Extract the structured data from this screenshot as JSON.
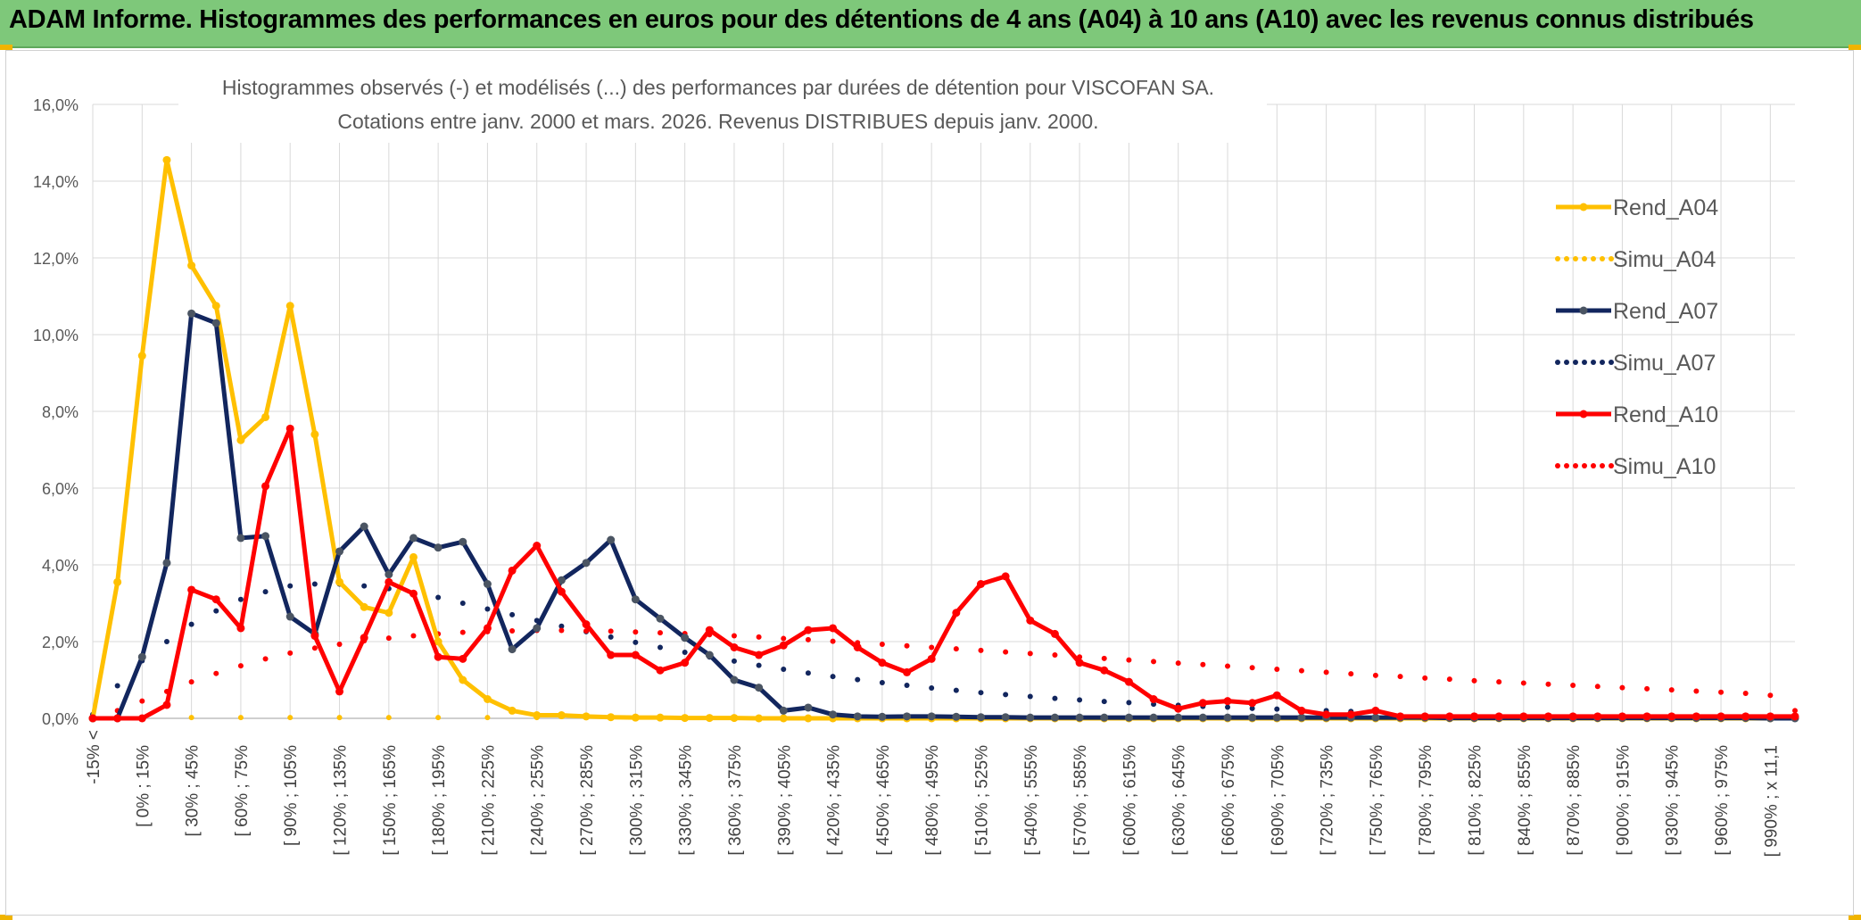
{
  "banner": {
    "title": "ADAM Informe. Histogrammes des performances en euros pour des détentions de 4 ans (A04) à 10 ans (A10) avec les revenus connus distribués"
  },
  "chart_data": {
    "type": "line",
    "title": "Histogrammes observés (-) et modélisés (...) des performances par durées de détention pour VISCOFAN SA.",
    "subtitle": "Cotations entre janv. 2000 et mars. 2026. Revenus DISTRIBUES depuis janv. 2000.",
    "xlabel": "",
    "ylabel": "",
    "ylim": [
      0,
      16
    ],
    "yticks": [
      "0,0%",
      "2,0%",
      "4,0%",
      "6,0%",
      "8,0%",
      "10,0%",
      "12,0%",
      "14,0%",
      "16,0%"
    ],
    "grid": true,
    "legend_position": "right",
    "x_tick_labels": [
      "-15% <",
      "[ 0% ; 15%",
      "[ 30% ; 45%",
      "[ 60% ; 75%",
      "[ 90% ; 105%",
      "[ 120% ; 135%",
      "[ 150% ; 165%",
      "[ 180% ; 195%",
      "[ 210% ; 225%",
      "[ 240% ; 255%",
      "[ 270% ; 285%",
      "[ 300% ; 315%",
      "[ 330% ; 345%",
      "[ 360% ; 375%",
      "[ 390% ; 405%",
      "[ 420% ; 435%",
      "[ 450% ; 465%",
      "[ 480% ; 495%",
      "[ 510% ; 525%",
      "[ 540% ; 555%",
      "[ 570% ; 585%",
      "[ 600% ; 615%",
      "[ 630% ; 645%",
      "[ 660% ; 675%",
      "[ 690% ; 705%",
      "[ 720% ; 735%",
      "[ 750% ; 765%",
      "[ 780% ; 795%",
      "[ 810% ; 825%",
      "[ 840% ; 855%",
      "[ 870% ; 885%",
      "[ 900% ; 915%",
      "[ 930% ; 945%",
      "[ 960% ; 975%",
      "[ 990% ; x 11,1"
    ],
    "series": [
      {
        "name": "Rend_A04",
        "style": "solid",
        "color": "#ffc000",
        "values": [
          0,
          3.55,
          9.45,
          14.55,
          11.8,
          10.75,
          7.25,
          7.85,
          10.75,
          7.4,
          3.55,
          2.9,
          2.75,
          4.2,
          2.0,
          1.0,
          0.5,
          0.2,
          0.08,
          0.08,
          0.05,
          0.03,
          0.02,
          0.02,
          0.01,
          0.01,
          0.01,
          0.0,
          0.0,
          0,
          0,
          0,
          0,
          0,
          0,
          0,
          0,
          0,
          0,
          0,
          0,
          0,
          0,
          0,
          0,
          0,
          0,
          0,
          0,
          0,
          0,
          0,
          0,
          0,
          0,
          0,
          0,
          0,
          0,
          0,
          0,
          0,
          0,
          0,
          0,
          0,
          0,
          0,
          0
        ]
      },
      {
        "name": "Simu_A04",
        "style": "dotted",
        "color": "#ffc000",
        "values": [
          0.02,
          0.02,
          0.02,
          0.02,
          0.02,
          0.02,
          0.02,
          0.02,
          0.02,
          0.02,
          0.02,
          0.02,
          0.02,
          0.02,
          0.02,
          0.02,
          0.02,
          0.02,
          0.02,
          0.02,
          0.02,
          0.02,
          0.02,
          0.02,
          0.02,
          0.02,
          0.02,
          0.02,
          0.02,
          0.02
        ]
      },
      {
        "name": "Rend_A07",
        "style": "solid",
        "color": "#12265e",
        "values": [
          0,
          0,
          1.6,
          4.05,
          10.55,
          10.3,
          4.7,
          4.75,
          2.65,
          2.2,
          4.35,
          5.0,
          3.75,
          4.7,
          4.45,
          4.6,
          3.5,
          1.8,
          2.35,
          3.6,
          4.05,
          4.65,
          3.1,
          2.6,
          2.1,
          1.65,
          1.0,
          0.8,
          0.2,
          0.28,
          0.1,
          0.05,
          0.04,
          0.05,
          0.05,
          0.04,
          0.03,
          0.03,
          0.02,
          0.02,
          0.02,
          0.02,
          0.02,
          0.02,
          0.02,
          0.02,
          0.02,
          0.02,
          0.02,
          0.02,
          0.02,
          0.02,
          0.02,
          0.02,
          0.02,
          0.01,
          0.01,
          0.01,
          0.01,
          0.01,
          0.01,
          0.01,
          0.01,
          0.01,
          0.01,
          0.01,
          0.01,
          0.01,
          0.0,
          0.0
        ]
      },
      {
        "name": "Simu_A07",
        "style": "dotted",
        "color": "#12265e",
        "values": [
          0.1,
          0.85,
          1.5,
          2.0,
          2.45,
          2.8,
          3.1,
          3.3,
          3.45,
          3.5,
          3.5,
          3.45,
          3.38,
          3.28,
          3.15,
          3.0,
          2.85,
          2.7,
          2.55,
          2.4,
          2.26,
          2.12,
          1.98,
          1.85,
          1.72,
          1.6,
          1.49,
          1.38,
          1.28,
          1.18,
          1.09,
          1.01,
          0.93,
          0.86,
          0.79,
          0.73,
          0.67,
          0.62,
          0.57,
          0.52,
          0.48,
          0.44,
          0.41,
          0.37,
          0.34,
          0.31,
          0.29,
          0.26,
          0.24,
          0.22,
          0.2,
          0.18
        ]
      },
      {
        "name": "Rend_A10",
        "style": "solid",
        "color": "#ff0000",
        "values": [
          0,
          0,
          0,
          0.35,
          3.35,
          3.1,
          2.35,
          6.05,
          7.55,
          2.15,
          0.7,
          2.1,
          3.55,
          3.25,
          1.6,
          1.55,
          2.35,
          3.85,
          4.5,
          3.3,
          2.45,
          1.65,
          1.65,
          1.25,
          1.45,
          2.3,
          1.85,
          1.65,
          1.9,
          2.3,
          2.35,
          1.85,
          1.45,
          1.2,
          1.55,
          2.75,
          3.5,
          3.7,
          2.55,
          2.2,
          1.45,
          1.25,
          0.95,
          0.5,
          0.25,
          0.4,
          0.45,
          0.4,
          0.6,
          0.2,
          0.1,
          0.1,
          0.2,
          0.05,
          0.05,
          0.05,
          0.05,
          0.05,
          0.05,
          0.05,
          0.05,
          0.05,
          0.05,
          0.05,
          0.05,
          0.05,
          0.05,
          0.05,
          0.05,
          0.05
        ]
      },
      {
        "name": "Simu_A10",
        "style": "dotted",
        "color": "#ff0000",
        "values": [
          0.05,
          0.2,
          0.45,
          0.7,
          0.95,
          1.17,
          1.37,
          1.55,
          1.7,
          1.83,
          1.93,
          2.02,
          2.09,
          2.15,
          2.2,
          2.24,
          2.26,
          2.28,
          2.29,
          2.29,
          2.28,
          2.27,
          2.25,
          2.23,
          2.21,
          2.18,
          2.15,
          2.12,
          2.08,
          2.05,
          2.01,
          1.97,
          1.93,
          1.89,
          1.85,
          1.81,
          1.77,
          1.73,
          1.69,
          1.65,
          1.6,
          1.56,
          1.52,
          1.48,
          1.44,
          1.4,
          1.36,
          1.32,
          1.28,
          1.24,
          1.2,
          1.16,
          1.12,
          1.09,
          1.05,
          1.02,
          0.98,
          0.95,
          0.92,
          0.89,
          0.86,
          0.83,
          0.8,
          0.77,
          0.74,
          0.71,
          0.68,
          0.65,
          0.6,
          0.2
        ]
      }
    ]
  }
}
